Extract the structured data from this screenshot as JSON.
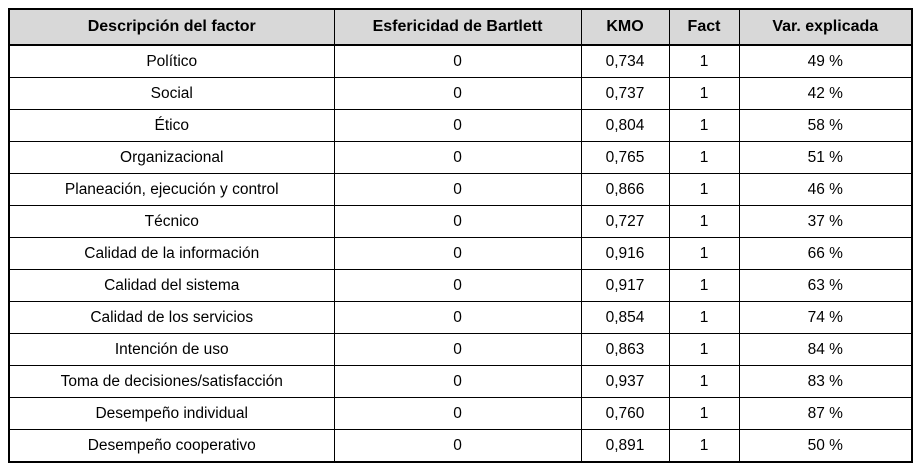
{
  "table": {
    "columns": [
      "Descripción del factor",
      "Esfericidad de Bartlett",
      "KMO",
      "Fact",
      "Var. explicada"
    ],
    "rows": [
      [
        "Político",
        "0",
        "0,734",
        "1",
        "49 %"
      ],
      [
        "Social",
        "0",
        "0,737",
        "1",
        "42 %"
      ],
      [
        "Ético",
        "0",
        "0,804",
        "1",
        "58 %"
      ],
      [
        "Organizacional",
        "0",
        "0,765",
        "1",
        "51 %"
      ],
      [
        "Planeación, ejecución y control",
        "0",
        "0,866",
        "1",
        "46 %"
      ],
      [
        "Técnico",
        "0",
        "0,727",
        "1",
        "37 %"
      ],
      [
        "Calidad de la información",
        "0",
        "0,916",
        "1",
        "66 %"
      ],
      [
        "Calidad del sistema",
        "0",
        "0,917",
        "1",
        "63 %"
      ],
      [
        "Calidad de los servicios",
        "0",
        "0,854",
        "1",
        "74 %"
      ],
      [
        "Intención de uso",
        "0",
        "0,863",
        "1",
        "84 %"
      ],
      [
        "Toma de decisiones/satisfacción",
        "0",
        "0,937",
        "1",
        "83 %"
      ],
      [
        "Desempeño individual",
        "0",
        "0,760",
        "1",
        "87 %"
      ],
      [
        "Desempeño cooperativo",
        "0",
        "0,891",
        "1",
        "50 %"
      ]
    ]
  },
  "colors": {
    "header_bg": "#d8d8d8",
    "border": "#000000",
    "text": "#000000",
    "page_bg": "#ffffff"
  }
}
